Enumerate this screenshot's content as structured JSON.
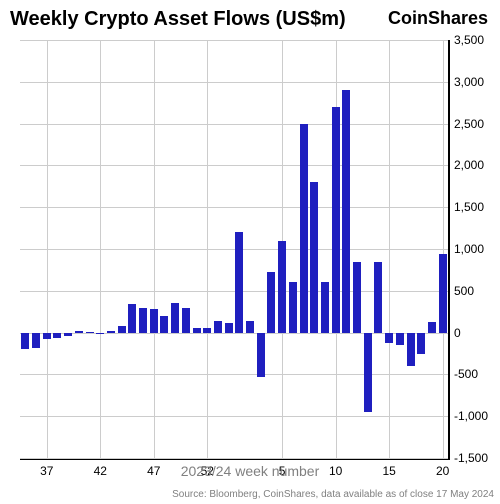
{
  "title": "Weekly Crypto Asset Flows (US$m)",
  "brand": "CoinShares",
  "xlabel": "2023/24 week number",
  "source": "Source: Bloomberg, CoinShares, data available as of close 17 May 2024",
  "chart": {
    "type": "bar",
    "bar_color": "#1f1fbf",
    "background_color": "#ffffff",
    "grid_color": "#cccccc",
    "axis_color": "#000000",
    "ylim": [
      -1500,
      3500
    ],
    "yticks": [
      -1500,
      -1000,
      -500,
      0,
      500,
      1000,
      1500,
      2000,
      2500,
      3000,
      3500
    ],
    "xtick_labels": [
      "37",
      "42",
      "47",
      "52",
      "5",
      "10",
      "15",
      "20"
    ],
    "xtick_positions": [
      35,
      40,
      45,
      50,
      57,
      62,
      67,
      72
    ],
    "x_start": 33,
    "x_end": 72,
    "title_fontsize": 20,
    "tick_fontsize": 12,
    "label_fontsize": 14,
    "source_fontsize": 10,
    "source_color": "#808080",
    "label_color": "#808080",
    "bar_width_ratio": 0.75,
    "data": [
      {
        "x": 33,
        "v": -200
      },
      {
        "x": 34,
        "v": -180
      },
      {
        "x": 35,
        "v": -80
      },
      {
        "x": 36,
        "v": -60
      },
      {
        "x": 37,
        "v": -40
      },
      {
        "x": 38,
        "v": 20
      },
      {
        "x": 39,
        "v": 10
      },
      {
        "x": 40,
        "v": -10
      },
      {
        "x": 41,
        "v": 15
      },
      {
        "x": 42,
        "v": 80
      },
      {
        "x": 43,
        "v": 340
      },
      {
        "x": 44,
        "v": 300
      },
      {
        "x": 45,
        "v": 280
      },
      {
        "x": 46,
        "v": 200
      },
      {
        "x": 47,
        "v": 350
      },
      {
        "x": 48,
        "v": 300
      },
      {
        "x": 49,
        "v": 50
      },
      {
        "x": 50,
        "v": 50
      },
      {
        "x": 51,
        "v": 140
      },
      {
        "x": 52,
        "v": 120
      },
      {
        "x": 53,
        "v": 1200
      },
      {
        "x": 54,
        "v": 140
      },
      {
        "x": 55,
        "v": -530
      },
      {
        "x": 56,
        "v": 720
      },
      {
        "x": 57,
        "v": 1100
      },
      {
        "x": 58,
        "v": 600
      },
      {
        "x": 59,
        "v": 2500
      },
      {
        "x": 60,
        "v": 1800
      },
      {
        "x": 61,
        "v": 600
      },
      {
        "x": 62,
        "v": 2700
      },
      {
        "x": 63,
        "v": 2900
      },
      {
        "x": 64,
        "v": 850
      },
      {
        "x": 65,
        "v": -950
      },
      {
        "x": 66,
        "v": 850
      },
      {
        "x": 67,
        "v": -130
      },
      {
        "x": 68,
        "v": -150
      },
      {
        "x": 69,
        "v": -400
      },
      {
        "x": 70,
        "v": -260
      },
      {
        "x": 71,
        "v": 130
      },
      {
        "x": 72,
        "v": 940
      }
    ]
  }
}
